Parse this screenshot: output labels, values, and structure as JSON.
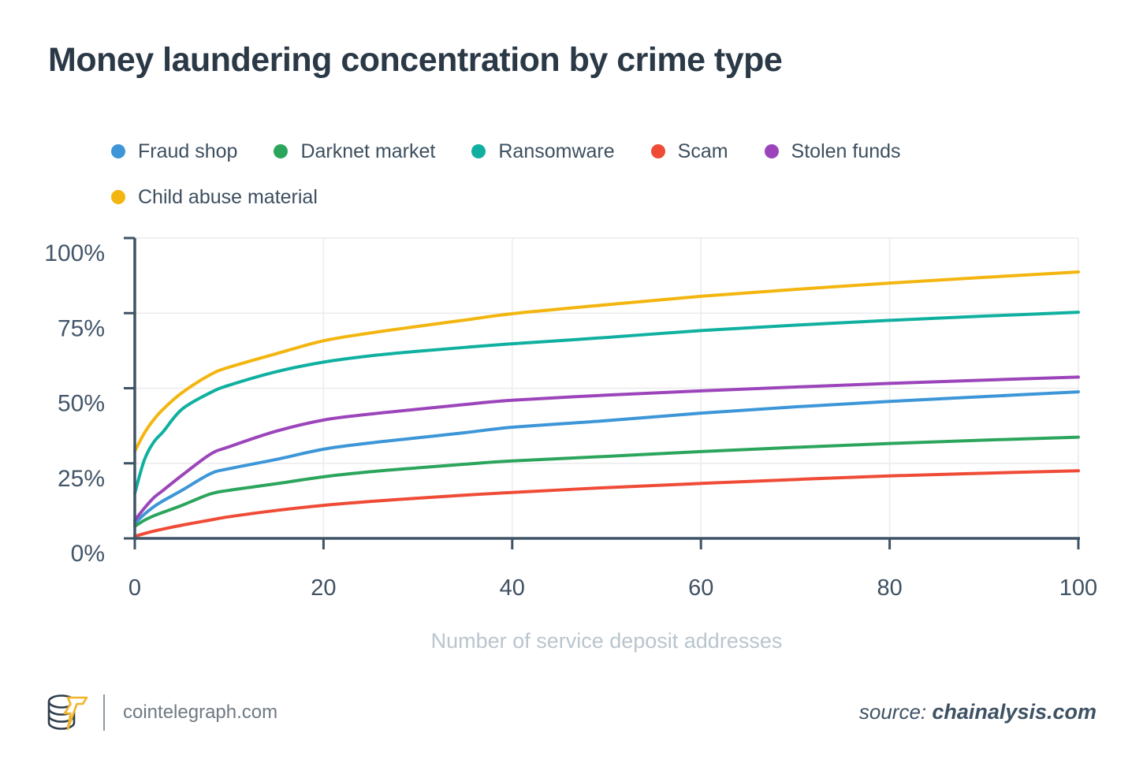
{
  "title": "Money laundering concentration by crime type",
  "chart_data": {
    "type": "line",
    "title": "Money laundering concentration by crime type",
    "xlabel": "Number of service deposit addresses",
    "ylabel": "",
    "xlim": [
      0,
      100
    ],
    "ylim": [
      0,
      100
    ],
    "grid": true,
    "legend_position": "top-left",
    "x_tick_values": [
      0,
      20,
      40,
      60,
      80,
      100
    ],
    "x_tick_labels": [
      "0",
      "20",
      "40",
      "60",
      "80",
      "100"
    ],
    "y_tick_values": [
      0,
      25,
      50,
      75,
      100
    ],
    "y_tick_labels": [
      "0%",
      "25%",
      "50%",
      "75%",
      "100%"
    ],
    "x": [
      0,
      1,
      2,
      3,
      5,
      8,
      10,
      15,
      20,
      25,
      30,
      35,
      40,
      50,
      60,
      70,
      80,
      90,
      100
    ],
    "series": [
      {
        "name": "Fraud shop",
        "color": "#3d96d7",
        "values": [
          5,
          8,
          10.5,
          12.5,
          16,
          21.5,
          23.2,
          26.3,
          29.7,
          31.8,
          33.5,
          35.2,
          37,
          39.2,
          41.7,
          43.8,
          45.6,
          47.2,
          48.8
        ]
      },
      {
        "name": "Darknet market",
        "color": "#2ca55c",
        "values": [
          4,
          6,
          7.5,
          8.7,
          11,
          14.8,
          16,
          18.2,
          20.5,
          22.2,
          23.5,
          24.7,
          25.8,
          27.3,
          28.9,
          30.3,
          31.6,
          32.7,
          33.7
        ]
      },
      {
        "name": "Ransomware",
        "color": "#10b0a0",
        "values": [
          15,
          26,
          32,
          35.5,
          43,
          48.5,
          51,
          55.5,
          58.7,
          60.8,
          62.3,
          63.6,
          64.8,
          66.9,
          69.2,
          71,
          72.6,
          74,
          75.3
        ]
      },
      {
        "name": "Scam",
        "color": "#ef4b36",
        "values": [
          0.7,
          1.6,
          2.4,
          3.1,
          4.4,
          6.1,
          7.2,
          9.3,
          11,
          12.3,
          13.4,
          14.4,
          15.3,
          16.9,
          18.3,
          19.6,
          20.8,
          21.7,
          22.5
        ]
      },
      {
        "name": "Stolen funds",
        "color": "#9c45bb",
        "values": [
          6,
          10,
          13.5,
          16,
          21,
          28,
          30.5,
          35.7,
          39.4,
          41.4,
          43,
          44.6,
          46,
          47.7,
          49.1,
          50.4,
          51.6,
          52.7,
          53.7
        ]
      },
      {
        "name": "Child abuse material",
        "color": "#f3b50f",
        "values": [
          29,
          35,
          39.5,
          43,
          48.5,
          54.5,
          57,
          61.5,
          65.8,
          68.4,
          70.6,
          72.7,
          74.8,
          77.8,
          80.6,
          82.9,
          85,
          86.9,
          88.7
        ]
      }
    ]
  },
  "footer": {
    "brand": "cointelegraph.com",
    "source_prefix": "source:",
    "source_name": "chainalysis.com"
  },
  "colors": {
    "title": "#2b3947",
    "axis": "#3f5366",
    "y_tick_label": "#43566a",
    "x_tick_label": "#3f5162",
    "xlabel": "#bac5ce",
    "grid": "#ebebeb",
    "legend_text": "#3d4f5f",
    "brand_text": "#6f7a84",
    "source_text": "#3e5264",
    "logo_coins": "#2e3d4c",
    "logo_bolt": "#f0b429"
  }
}
